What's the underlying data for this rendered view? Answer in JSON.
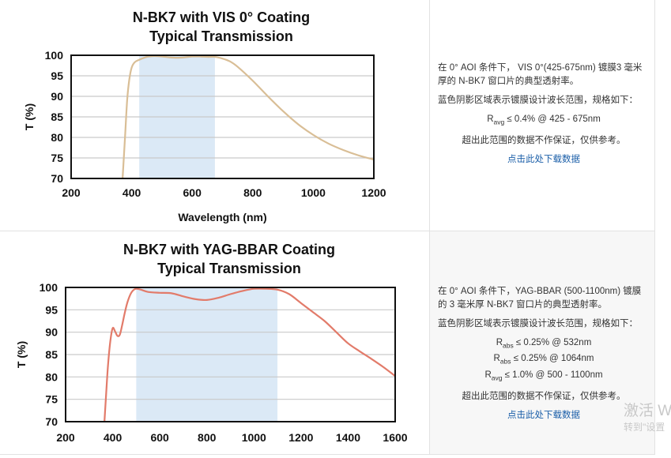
{
  "rows": [
    {
      "description": {
        "para1": "在 0° AOI 条件下，  VIS 0°(425-675nm) 镀膜3 毫米厚的 N-BK7 窗口片的典型透射率。",
        "para2": "蓝色阴影区域表示镀膜设计波长范围，规格如下：",
        "specs": [
          {
            "sym": "R",
            "sub": "avg",
            "text": " ≤ 0.4% @ 425 - 675nm"
          }
        ],
        "para3": "超出此范围的数据不作保证，仅供参考。",
        "link": "点击此处下载数据"
      }
    },
    {
      "description": {
        "para1": "在 0° AOI 条件下，YAG-BBAR (500-1100nm) 镀膜的 3 毫米厚 N-BK7 窗口片的典型透射率。",
        "para2": "蓝色阴影区域表示镀膜设计波长范围，规格如下：",
        "specs": [
          {
            "sym": "R",
            "sub": "abs",
            "text": " ≤ 0.25% @ 532nm"
          },
          {
            "sym": "R",
            "sub": "abs",
            "text": " ≤ 0.25% @ 1064nm"
          },
          {
            "sym": "R",
            "sub": "avg",
            "text": " ≤ 1.0% @ 500 - 1100nm"
          }
        ],
        "para3": "超出此范围的数据不作保证，仅供参考。",
        "link": "点击此处下载数据"
      }
    }
  ],
  "chart_data": [
    {
      "type": "line",
      "title": "N-BK7 with VIS 0° Coating",
      "subtitle": "Typical Transmission",
      "xlabel": "Wavelength (nm)",
      "ylabel": "T (%)",
      "xlim": [
        200,
        1200
      ],
      "ylim": [
        70,
        100
      ],
      "xticks": [
        200,
        400,
        600,
        800,
        1000,
        1200
      ],
      "yticks": [
        70,
        75,
        80,
        85,
        90,
        95,
        100
      ],
      "shaded_band": [
        425,
        675
      ],
      "line_color": "#d9be96",
      "band_color": "#dbe9f6",
      "grid": true,
      "series": [
        {
          "x": [
            370,
            378,
            385,
            392,
            400,
            410,
            425,
            450,
            475,
            500,
            525,
            550,
            575,
            600,
            625,
            650,
            675,
            700,
            725,
            750,
            800,
            850,
            900,
            950,
            1000,
            1050,
            1100,
            1150,
            1200
          ],
          "y": [
            70,
            80,
            89,
            94,
            97,
            98.3,
            98.9,
            99.6,
            99.8,
            99.7,
            99.5,
            99.4,
            99.5,
            99.7,
            99.7,
            99.6,
            99.6,
            99.2,
            98.5,
            97.2,
            93.8,
            90.0,
            86.4,
            83.2,
            80.6,
            78.5,
            76.9,
            75.6,
            74.6
          ]
        }
      ]
    },
    {
      "type": "line",
      "title": "N-BK7 with YAG-BBAR Coating",
      "subtitle": "Typical Transmission",
      "xlabel": "",
      "ylabel": "T (%)",
      "xlim": [
        200,
        1600
      ],
      "ylim": [
        70,
        100
      ],
      "xticks": [
        200,
        400,
        600,
        800,
        1000,
        1200,
        1400,
        1600
      ],
      "yticks": [
        70,
        75,
        80,
        85,
        90,
        95,
        100
      ],
      "shaded_band": [
        500,
        1100
      ],
      "line_color": "#e27b6a",
      "band_color": "#dbe9f6",
      "grid": true,
      "series": [
        {
          "x": [
            365,
            372,
            380,
            390,
            400,
            410,
            420,
            430,
            440,
            450,
            460,
            470,
            480,
            490,
            500,
            520,
            550,
            600,
            650,
            700,
            750,
            800,
            850,
            900,
            950,
            1000,
            1050,
            1100,
            1150,
            1200,
            1250,
            1300,
            1350,
            1400,
            1450,
            1500,
            1550,
            1600
          ],
          "y": [
            70,
            76,
            82.5,
            88,
            90.9,
            90.2,
            89.2,
            89.4,
            91.5,
            94,
            96.2,
            97.8,
            98.9,
            99.5,
            99.7,
            99.5,
            99.0,
            98.8,
            98.7,
            98.0,
            97.4,
            97.2,
            97.7,
            98.5,
            99.2,
            99.7,
            99.7,
            99.5,
            98.5,
            96.5,
            94.5,
            92.5,
            90.0,
            87.5,
            85.7,
            84.0,
            82.2,
            80.2
          ]
        }
      ]
    }
  ],
  "watermark": {
    "line1": "激活 W",
    "line2": "转到\"设置"
  }
}
